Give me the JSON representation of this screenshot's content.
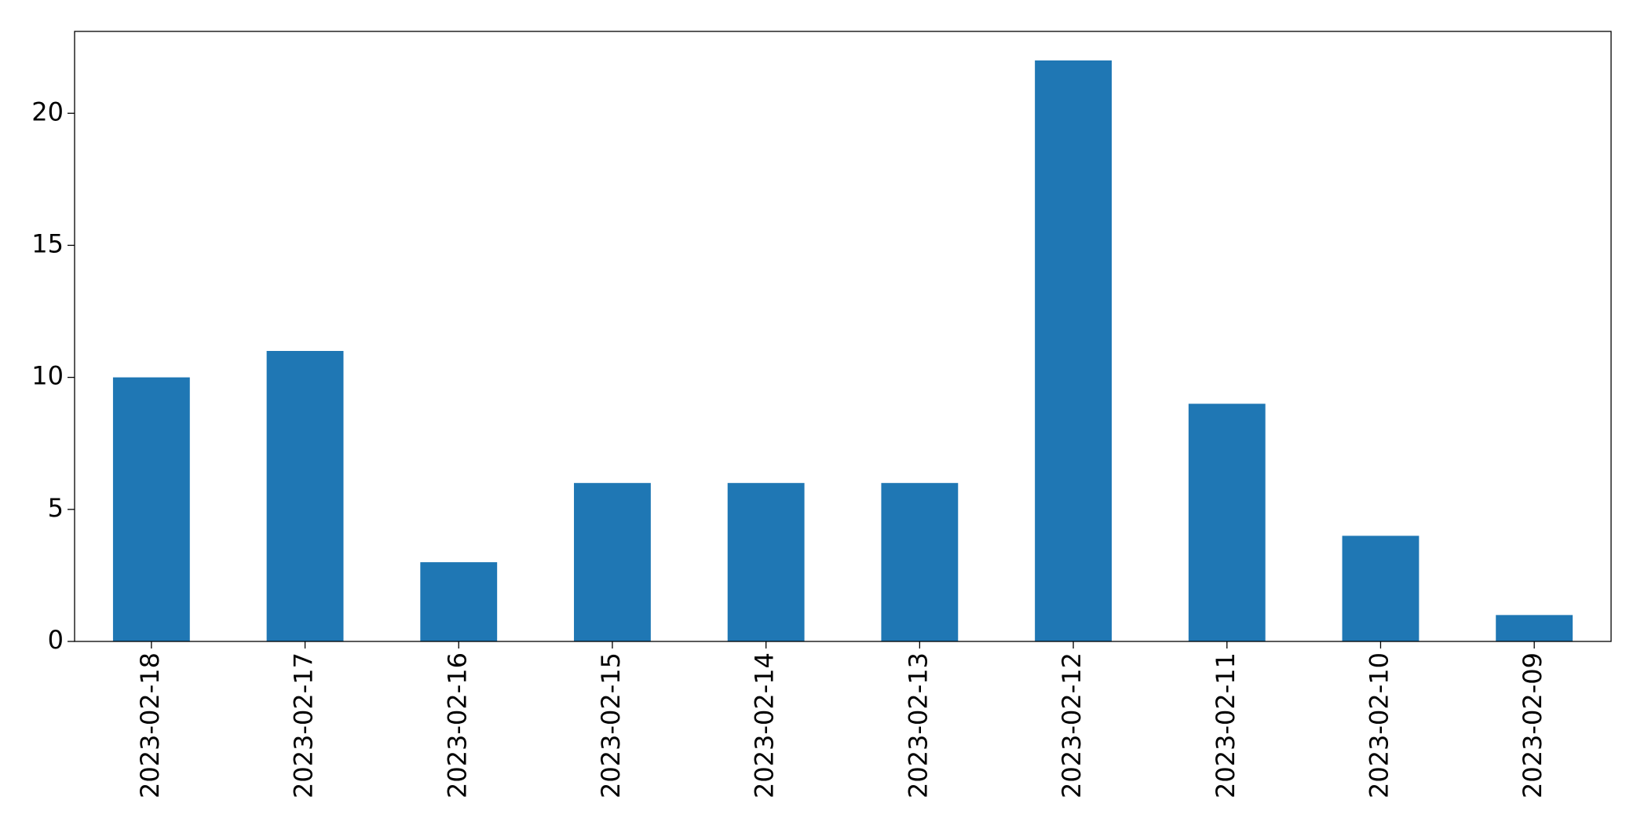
{
  "chart_data": {
    "type": "bar",
    "categories": [
      "2023-02-18",
      "2023-02-17",
      "2023-02-16",
      "2023-02-15",
      "2023-02-14",
      "2023-02-13",
      "2023-02-12",
      "2023-02-11",
      "2023-02-10",
      "2023-02-09"
    ],
    "values": [
      10,
      11,
      3,
      6,
      6,
      6,
      22,
      9,
      4,
      1
    ],
    "color": "#1f77b4",
    "ylim": [
      0,
      23.1
    ],
    "yticks": [
      0,
      5,
      10,
      15,
      20
    ],
    "grid": false
  }
}
